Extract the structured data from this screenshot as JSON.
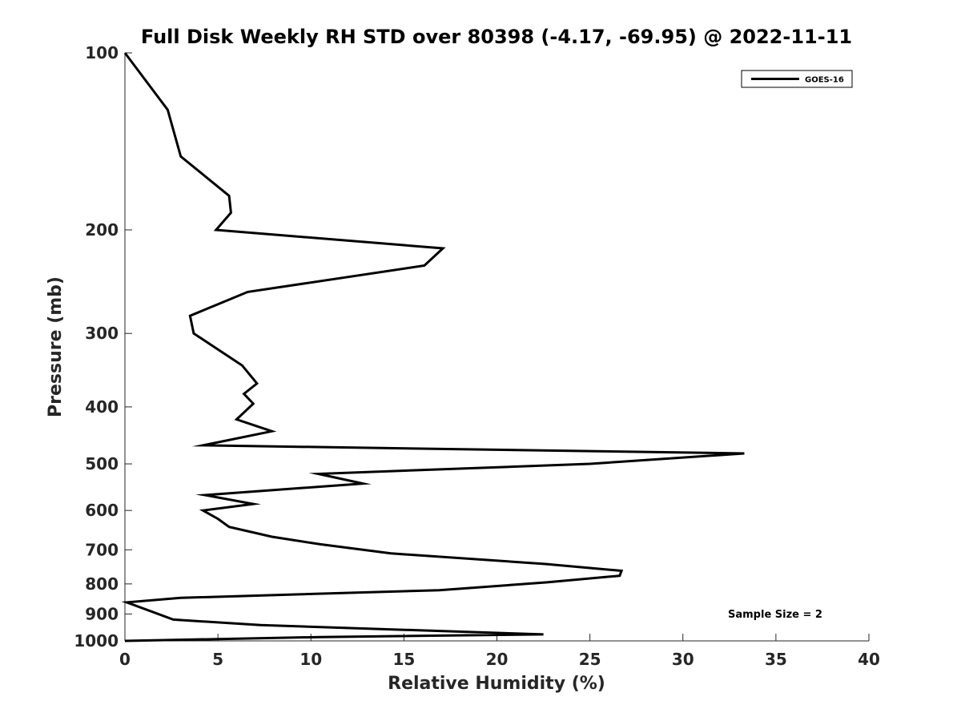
{
  "chart_data": {
    "type": "line",
    "title": "Full Disk Weekly RH STD over 80398 (-4.17, -69.95) @ 2022-11-11",
    "xlabel": "Relative Humidity (%)",
    "ylabel": "Pressure (mb)",
    "xlim": [
      0,
      40
    ],
    "ylim": [
      100,
      1000
    ],
    "yscale": "log-reversed",
    "xticks": [
      0,
      5,
      10,
      15,
      20,
      25,
      30,
      35,
      40
    ],
    "yticks": [
      100,
      200,
      300,
      400,
      500,
      600,
      700,
      800,
      900,
      1000
    ],
    "grid": false,
    "legend_position": "top-right",
    "annotation": "Sample Size = 2",
    "series": [
      {
        "name": "GOES-16",
        "color": "#000000",
        "points": [
          [
            0.0,
            100
          ],
          [
            2.3,
            125
          ],
          [
            3.0,
            150
          ],
          [
            5.6,
            175
          ],
          [
            5.7,
            187
          ],
          [
            4.9,
            200
          ],
          [
            17.1,
            215
          ],
          [
            16.1,
            230
          ],
          [
            6.6,
            255
          ],
          [
            3.5,
            280
          ],
          [
            3.7,
            300
          ],
          [
            6.3,
            340
          ],
          [
            7.1,
            365
          ],
          [
            6.4,
            380
          ],
          [
            6.9,
            395
          ],
          [
            6.0,
            420
          ],
          [
            7.9,
            440
          ],
          [
            4.2,
            465
          ],
          [
            33.3,
            480
          ],
          [
            25.0,
            500
          ],
          [
            10.4,
            520
          ],
          [
            12.8,
            540
          ],
          [
            4.3,
            565
          ],
          [
            6.9,
            585
          ],
          [
            4.2,
            600
          ],
          [
            5.0,
            620
          ],
          [
            5.6,
            640
          ],
          [
            7.9,
            665
          ],
          [
            10.5,
            685
          ],
          [
            14.3,
            710
          ],
          [
            22.6,
            740
          ],
          [
            26.7,
            760
          ],
          [
            26.6,
            775
          ],
          [
            22.7,
            795
          ],
          [
            16.9,
            820
          ],
          [
            3.0,
            845
          ],
          [
            0.1,
            860
          ],
          [
            2.6,
            920
          ],
          [
            7.3,
            940
          ],
          [
            22.5,
            975
          ],
          [
            10.5,
            985
          ],
          [
            0.0,
            1000
          ]
        ]
      }
    ]
  }
}
